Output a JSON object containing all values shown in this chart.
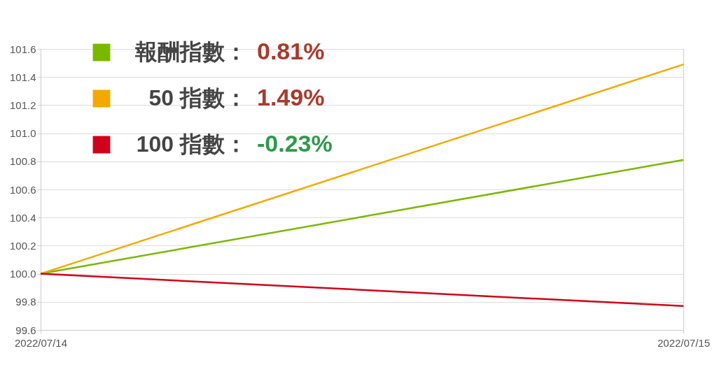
{
  "chart_data": {
    "type": "line",
    "x": [
      "2022-07-14",
      "2022-07-15"
    ],
    "xlim": [
      "2022-07-14",
      "2022-07-15"
    ],
    "xticks": [
      {
        "value": "2022-07-14",
        "label": "2022/07/14"
      },
      {
        "value": "2022-07-15",
        "label": "2022/07/15"
      }
    ],
    "ylim": [
      99.6,
      101.6
    ],
    "yticks": [
      {
        "value": 99.6,
        "label": "99.6"
      },
      {
        "value": 99.8,
        "label": "99.8"
      },
      {
        "value": 100.0,
        "label": "100.0"
      },
      {
        "value": 100.2,
        "label": "100.2"
      },
      {
        "value": 100.4,
        "label": "100.4"
      },
      {
        "value": 100.6,
        "label": "100.6"
      },
      {
        "value": 100.8,
        "label": "100.8"
      },
      {
        "value": 101.0,
        "label": "101.0"
      },
      {
        "value": 101.2,
        "label": "101.2"
      },
      {
        "value": 101.4,
        "label": "101.4"
      },
      {
        "value": 101.6,
        "label": "101.6"
      }
    ],
    "series": [
      {
        "name": "報酬指數：",
        "color": "#7ab800",
        "values": [
          100.0,
          100.81
        ]
      },
      {
        "name": "50 指數：",
        "color": "#f5a800",
        "values": [
          100.0,
          101.49
        ]
      },
      {
        "name": "100 指數：",
        "color": "#d0021b",
        "values": [
          100.0,
          99.77
        ]
      }
    ],
    "annotations": [
      "0.81%",
      "1.49%",
      "-0.23%"
    ],
    "grid": true,
    "legend": "top left",
    "marker": "none",
    "line_style": "solid"
  }
}
